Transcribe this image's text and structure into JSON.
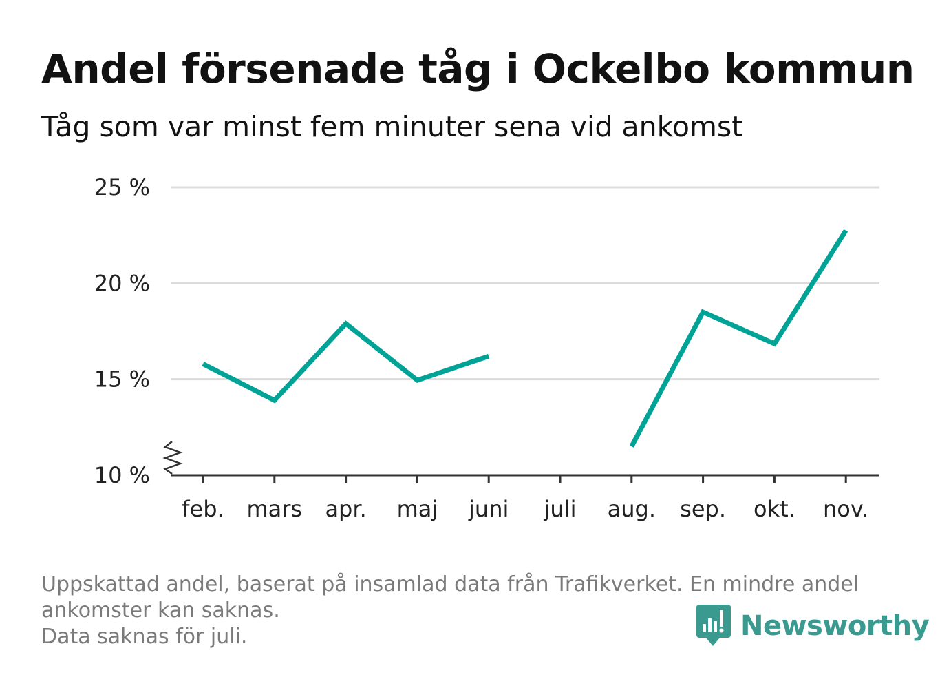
{
  "header": {
    "title": "Andel försenade tåg i Ockelbo kommun",
    "subtitle": "Tåg som var minst fem minuter sena vid ankomst"
  },
  "footer": {
    "lines": [
      "Uppskattad andel, baserat på insamlad data från Trafikverket. En mindre andel",
      "ankomster kan saknas.",
      "Data saknas för juli."
    ]
  },
  "brand": {
    "name": "Newsworthy",
    "icon": "newsworthy-logo-icon",
    "color": "#3a9a8f"
  },
  "chart_data": {
    "type": "line",
    "categories": [
      "feb.",
      "mars",
      "apr.",
      "maj",
      "juni",
      "juli",
      "aug.",
      "sep.",
      "okt.",
      "nov."
    ],
    "series": [
      {
        "values": [
          15.8,
          13.9,
          17.9,
          14.95,
          16.2,
          null,
          11.5,
          18.5,
          16.85,
          22.75
        ],
        "color": "#00a396"
      }
    ],
    "yticks": [
      10,
      15,
      20,
      25
    ],
    "ytick_labels": [
      "10 %",
      "15 %",
      "20 %",
      "25 %"
    ],
    "ylim": [
      10,
      25
    ],
    "y_axis_break": true,
    "grid": true,
    "xlabel": "",
    "ylabel": ""
  }
}
